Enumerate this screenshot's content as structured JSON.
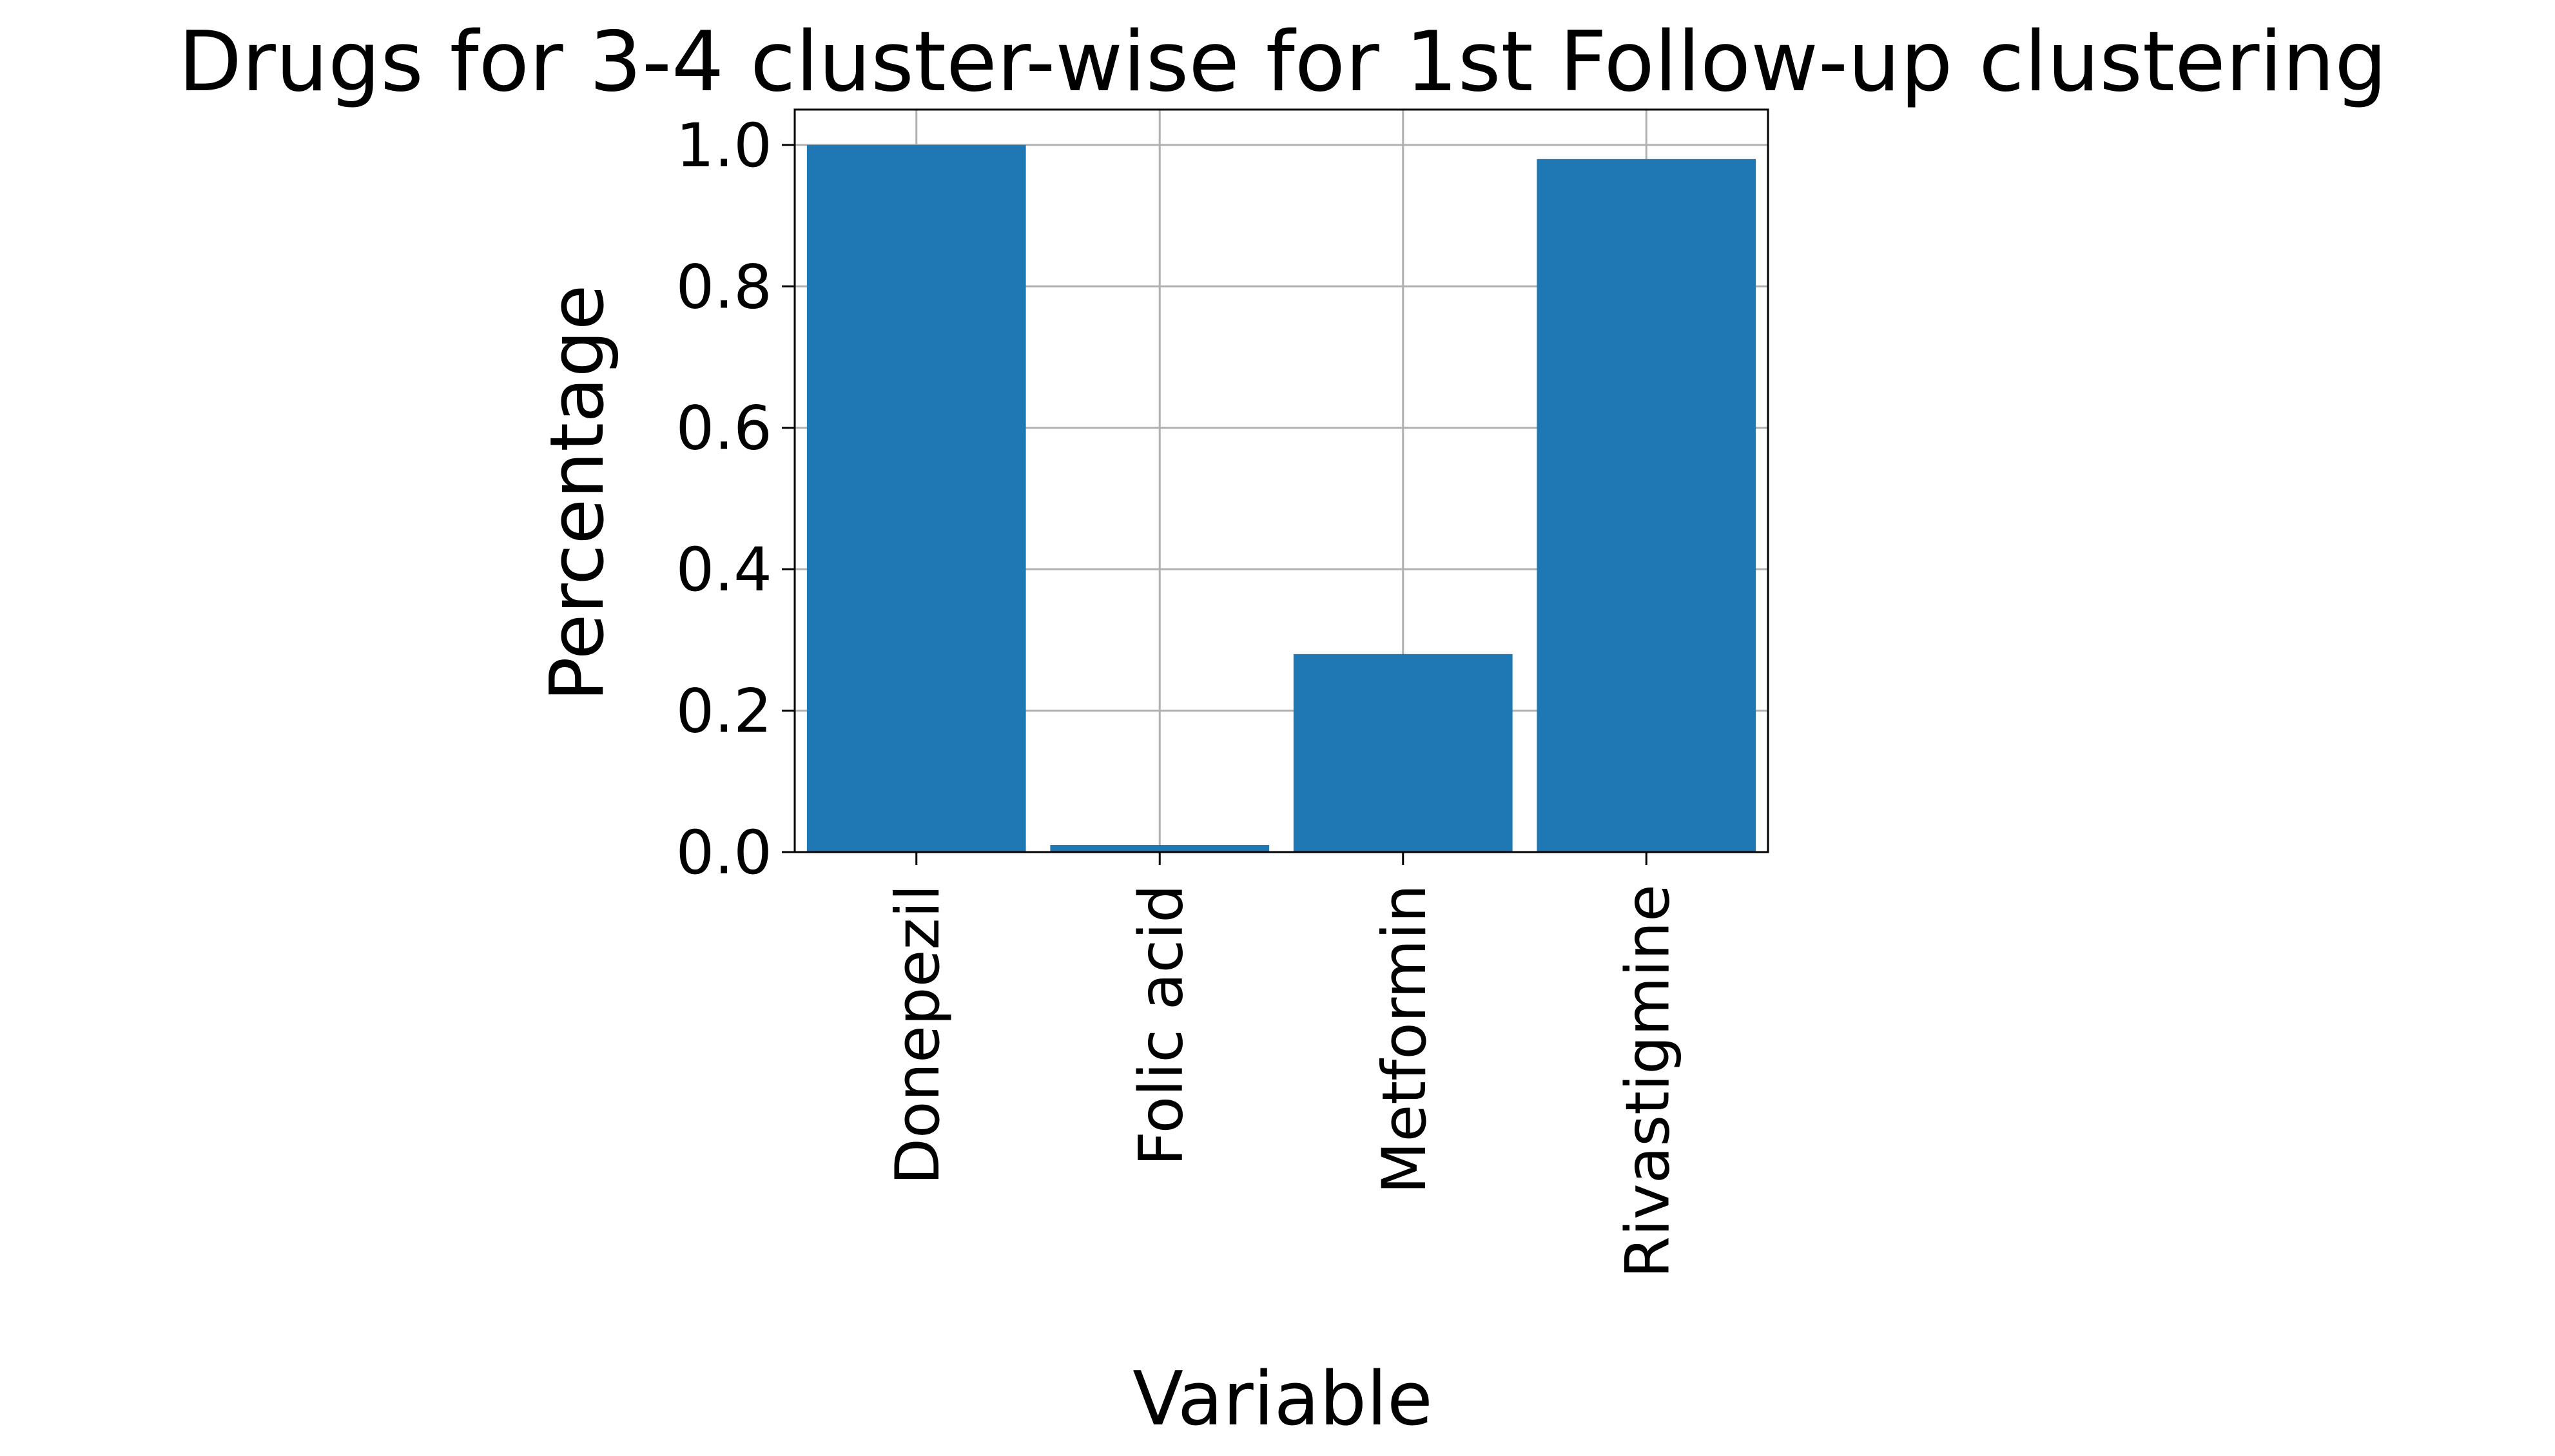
{
  "chart_data": {
    "type": "bar",
    "title": "Drugs for 3-4 cluster-wise for 1st Follow-up clustering",
    "xlabel": "Variable",
    "ylabel": "Percentage",
    "categories": [
      "Donepezil",
      "Folic acid",
      "Metformin",
      "Rivastigmine"
    ],
    "values": [
      1.0,
      0.01,
      0.28,
      0.98
    ],
    "ylim": [
      0,
      1.05
    ],
    "yticks": [
      "0.0",
      "0.2",
      "0.4",
      "0.6",
      "0.8",
      "1.0"
    ],
    "grid": true,
    "legend": "none",
    "bar_color": "#1f77b4",
    "grid_color": "#b0b0b0"
  }
}
